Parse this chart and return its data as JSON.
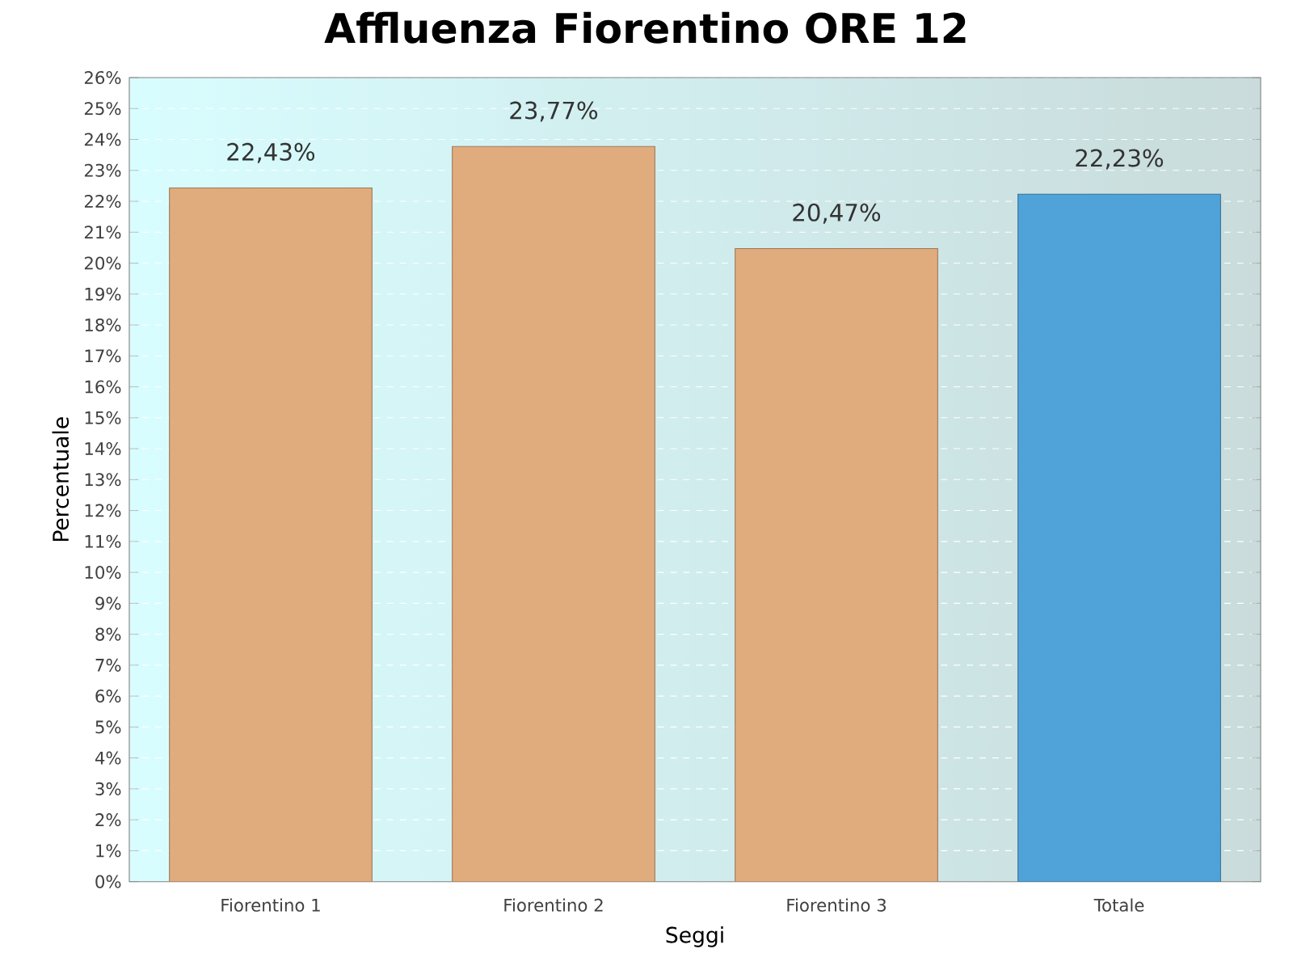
{
  "chart_data": {
    "type": "bar",
    "title": "Affluenza Fiorentino ORE 12",
    "xlabel": "Seggi",
    "ylabel": "Percentuale",
    "categories": [
      "Fiorentino 1",
      "Fiorentino 2",
      "Fiorentino 3",
      "Totale"
    ],
    "values": [
      22.43,
      23.77,
      20.47,
      22.23
    ],
    "colors": [
      "#e0ac7e",
      "#e0ac7e",
      "#e0ac7e",
      "#4fa3d8"
    ],
    "value_labels": [
      "22,43%",
      "23,77%",
      "20,47%",
      "22,23%"
    ],
    "ylim": [
      0,
      26
    ],
    "yticks": [
      {
        "value": 0,
        "label": "0%"
      },
      {
        "value": 1,
        "label": "1%"
      },
      {
        "value": 2,
        "label": "2%"
      },
      {
        "value": 3,
        "label": "3%"
      },
      {
        "value": 4,
        "label": "4%"
      },
      {
        "value": 5,
        "label": "5%"
      },
      {
        "value": 6,
        "label": "6%"
      },
      {
        "value": 7,
        "label": "7%"
      },
      {
        "value": 8,
        "label": "8%"
      },
      {
        "value": 9,
        "label": "9%"
      },
      {
        "value": 10,
        "label": "10%"
      },
      {
        "value": 11,
        "label": "11%"
      },
      {
        "value": 12,
        "label": "12%"
      },
      {
        "value": 13,
        "label": "13%"
      },
      {
        "value": 14,
        "label": "14%"
      },
      {
        "value": 15,
        "label": "15%"
      },
      {
        "value": 16,
        "label": "16%"
      },
      {
        "value": 17,
        "label": "17%"
      },
      {
        "value": 18,
        "label": "18%"
      },
      {
        "value": 19,
        "label": "19%"
      },
      {
        "value": 20,
        "label": "20%"
      },
      {
        "value": 21,
        "label": "21%"
      },
      {
        "value": 22,
        "label": "22%"
      },
      {
        "value": 23,
        "label": "23%"
      },
      {
        "value": 24,
        "label": "24%"
      },
      {
        "value": 25,
        "label": "25%"
      },
      {
        "value": 26,
        "label": "26%"
      }
    ],
    "grid": "y"
  }
}
